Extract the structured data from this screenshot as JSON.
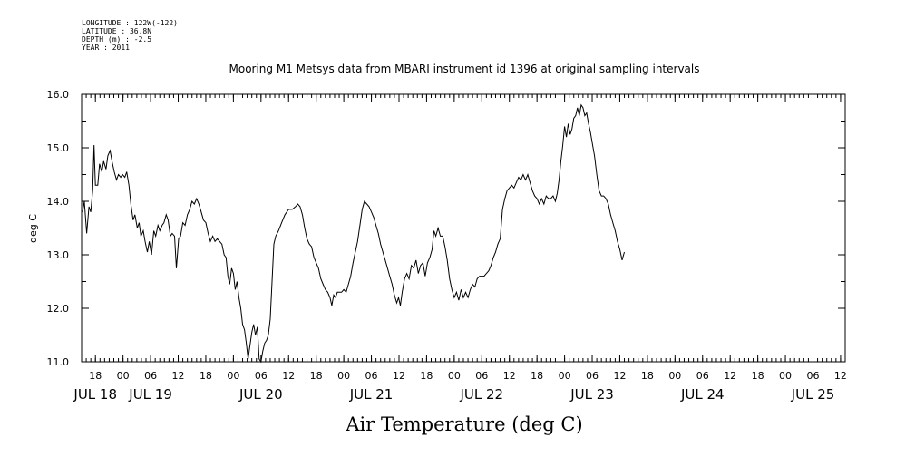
{
  "meta": {
    "longitude": "LONGITUDE : 122W(-122)",
    "latitude": "LATITUDE : 36.8N",
    "depth": "DEPTH (m) : -2.5",
    "year": "YEAR : 2011"
  },
  "chart_data": {
    "type": "line",
    "title": "Mooring M1 Metsys data from MBARI instrument id 1396 at original sampling intervals",
    "xlabel": "Air Temperature (deg C)",
    "ylabel": "deg C",
    "xlim": [
      15,
      181
    ],
    "ylim": [
      11.0,
      16.0
    ],
    "y_ticks": [
      "11.0",
      "12.0",
      "13.0",
      "14.0",
      "15.0",
      "16.0"
    ],
    "x_hour_ticks": [
      {
        "h": 18,
        "label": "18"
      },
      {
        "h": 24,
        "label": "00"
      },
      {
        "h": 30,
        "label": "06"
      },
      {
        "h": 36,
        "label": "12"
      },
      {
        "h": 42,
        "label": "18"
      },
      {
        "h": 48,
        "label": "00"
      },
      {
        "h": 54,
        "label": "06"
      },
      {
        "h": 60,
        "label": "12"
      },
      {
        "h": 66,
        "label": "18"
      },
      {
        "h": 72,
        "label": "00"
      },
      {
        "h": 78,
        "label": "06"
      },
      {
        "h": 84,
        "label": "12"
      },
      {
        "h": 90,
        "label": "18"
      },
      {
        "h": 96,
        "label": "00"
      },
      {
        "h": 102,
        "label": "06"
      },
      {
        "h": 108,
        "label": "12"
      },
      {
        "h": 114,
        "label": "18"
      },
      {
        "h": 120,
        "label": "00"
      },
      {
        "h": 126,
        "label": "06"
      },
      {
        "h": 132,
        "label": "12"
      },
      {
        "h": 138,
        "label": "18"
      },
      {
        "h": 144,
        "label": "00"
      },
      {
        "h": 150,
        "label": "06"
      },
      {
        "h": 156,
        "label": "12"
      },
      {
        "h": 162,
        "label": "18"
      },
      {
        "h": 168,
        "label": "00"
      },
      {
        "h": 174,
        "label": "06"
      },
      {
        "h": 180,
        "label": "12"
      }
    ],
    "x_day_labels": [
      {
        "h": 18,
        "label": "JUL 18"
      },
      {
        "h": 30,
        "label": "JUL 19"
      },
      {
        "h": 54,
        "label": "JUL 20"
      },
      {
        "h": 78,
        "label": "JUL 21"
      },
      {
        "h": 102,
        "label": "JUL 22"
      },
      {
        "h": 126,
        "label": "JUL 23"
      },
      {
        "h": 150,
        "label": "JUL 24"
      },
      {
        "h": 174,
        "label": "JUL 25"
      }
    ],
    "series": [
      {
        "color": "#000000",
        "points": [
          [
            15.2,
            13.8
          ],
          [
            15.6,
            14.0
          ],
          [
            16.1,
            13.4
          ],
          [
            16.6,
            13.9
          ],
          [
            17.0,
            13.8
          ],
          [
            17.4,
            14.2
          ],
          [
            17.7,
            15.05
          ],
          [
            18.0,
            14.3
          ],
          [
            18.5,
            14.3
          ],
          [
            18.9,
            14.7
          ],
          [
            19.4,
            14.55
          ],
          [
            19.8,
            14.75
          ],
          [
            20.3,
            14.6
          ],
          [
            20.7,
            14.85
          ],
          [
            21.2,
            14.95
          ],
          [
            21.6,
            14.75
          ],
          [
            22.1,
            14.55
          ],
          [
            22.6,
            14.4
          ],
          [
            23.0,
            14.5
          ],
          [
            23.5,
            14.45
          ],
          [
            23.9,
            14.5
          ],
          [
            24.4,
            14.45
          ],
          [
            24.8,
            14.55
          ],
          [
            25.3,
            14.3
          ],
          [
            25.7,
            13.95
          ],
          [
            26.2,
            13.65
          ],
          [
            26.6,
            13.75
          ],
          [
            27.1,
            13.5
          ],
          [
            27.5,
            13.6
          ],
          [
            27.9,
            13.35
          ],
          [
            28.4,
            13.45
          ],
          [
            28.8,
            13.25
          ],
          [
            29.3,
            13.05
          ],
          [
            29.7,
            13.25
          ],
          [
            30.2,
            13.0
          ],
          [
            30.7,
            13.45
          ],
          [
            31.1,
            13.35
          ],
          [
            31.6,
            13.55
          ],
          [
            32.0,
            13.45
          ],
          [
            32.5,
            13.55
          ],
          [
            32.9,
            13.6
          ],
          [
            33.4,
            13.75
          ],
          [
            33.8,
            13.65
          ],
          [
            34.3,
            13.35
          ],
          [
            34.7,
            13.4
          ],
          [
            35.2,
            13.35
          ],
          [
            35.6,
            12.75
          ],
          [
            36.1,
            13.3
          ],
          [
            36.5,
            13.35
          ],
          [
            37.0,
            13.6
          ],
          [
            37.5,
            13.55
          ],
          [
            38.0,
            13.75
          ],
          [
            38.5,
            13.85
          ],
          [
            39.0,
            14.0
          ],
          [
            39.5,
            13.95
          ],
          [
            40.0,
            14.05
          ],
          [
            40.5,
            13.95
          ],
          [
            41.0,
            13.8
          ],
          [
            41.5,
            13.65
          ],
          [
            42.0,
            13.6
          ],
          [
            42.5,
            13.4
          ],
          [
            43.0,
            13.25
          ],
          [
            43.5,
            13.35
          ],
          [
            44.0,
            13.25
          ],
          [
            44.5,
            13.3
          ],
          [
            45.0,
            13.25
          ],
          [
            45.5,
            13.2
          ],
          [
            46.0,
            13.0
          ],
          [
            46.4,
            12.95
          ],
          [
            46.8,
            12.6
          ],
          [
            47.2,
            12.45
          ],
          [
            47.6,
            12.75
          ],
          [
            48.0,
            12.65
          ],
          [
            48.4,
            12.35
          ],
          [
            48.8,
            12.5
          ],
          [
            49.2,
            12.2
          ],
          [
            49.6,
            12.0
          ],
          [
            50.0,
            11.7
          ],
          [
            50.4,
            11.6
          ],
          [
            50.8,
            11.35
          ],
          [
            51.2,
            11.05
          ],
          [
            51.6,
            11.3
          ],
          [
            52.0,
            11.55
          ],
          [
            52.4,
            11.7
          ],
          [
            52.8,
            11.5
          ],
          [
            53.2,
            11.65
          ],
          [
            53.6,
            11.05
          ],
          [
            54.0,
            11.0
          ],
          [
            54.4,
            11.2
          ],
          [
            54.8,
            11.35
          ],
          [
            55.2,
            11.4
          ],
          [
            55.6,
            11.5
          ],
          [
            56.0,
            11.8
          ],
          [
            56.4,
            12.5
          ],
          [
            56.8,
            13.2
          ],
          [
            57.2,
            13.35
          ],
          [
            57.8,
            13.45
          ],
          [
            58.5,
            13.6
          ],
          [
            59.2,
            13.75
          ],
          [
            60.0,
            13.85
          ],
          [
            60.8,
            13.85
          ],
          [
            61.5,
            13.9
          ],
          [
            62.0,
            13.95
          ],
          [
            62.5,
            13.9
          ],
          [
            63.0,
            13.75
          ],
          [
            63.5,
            13.5
          ],
          [
            64.0,
            13.3
          ],
          [
            64.5,
            13.2
          ],
          [
            65.0,
            13.15
          ],
          [
            65.5,
            12.95
          ],
          [
            66.0,
            12.85
          ],
          [
            66.5,
            12.75
          ],
          [
            67.0,
            12.55
          ],
          [
            67.5,
            12.45
          ],
          [
            68.0,
            12.35
          ],
          [
            68.5,
            12.3
          ],
          [
            69.0,
            12.2
          ],
          [
            69.4,
            12.05
          ],
          [
            69.8,
            12.25
          ],
          [
            70.2,
            12.2
          ],
          [
            70.6,
            12.3
          ],
          [
            71.0,
            12.3
          ],
          [
            71.5,
            12.3
          ],
          [
            72.0,
            12.35
          ],
          [
            72.5,
            12.3
          ],
          [
            73.0,
            12.45
          ],
          [
            73.5,
            12.6
          ],
          [
            74.0,
            12.85
          ],
          [
            74.5,
            13.05
          ],
          [
            75.0,
            13.25
          ],
          [
            75.5,
            13.55
          ],
          [
            76.0,
            13.85
          ],
          [
            76.5,
            14.0
          ],
          [
            77.0,
            13.95
          ],
          [
            77.5,
            13.9
          ],
          [
            78.0,
            13.8
          ],
          [
            78.5,
            13.7
          ],
          [
            79.0,
            13.55
          ],
          [
            79.5,
            13.4
          ],
          [
            80.0,
            13.2
          ],
          [
            80.5,
            13.05
          ],
          [
            81.0,
            12.9
          ],
          [
            81.5,
            12.75
          ],
          [
            82.0,
            12.6
          ],
          [
            82.5,
            12.45
          ],
          [
            83.0,
            12.25
          ],
          [
            83.5,
            12.1
          ],
          [
            83.9,
            12.2
          ],
          [
            84.3,
            12.05
          ],
          [
            84.7,
            12.3
          ],
          [
            85.2,
            12.55
          ],
          [
            85.7,
            12.65
          ],
          [
            86.2,
            12.55
          ],
          [
            86.7,
            12.8
          ],
          [
            87.2,
            12.75
          ],
          [
            87.7,
            12.9
          ],
          [
            88.2,
            12.65
          ],
          [
            88.7,
            12.8
          ],
          [
            89.2,
            12.85
          ],
          [
            89.7,
            12.6
          ],
          [
            90.2,
            12.85
          ],
          [
            90.7,
            12.95
          ],
          [
            91.2,
            13.1
          ],
          [
            91.6,
            13.45
          ],
          [
            92.0,
            13.35
          ],
          [
            92.5,
            13.5
          ],
          [
            93.0,
            13.35
          ],
          [
            93.5,
            13.35
          ],
          [
            94.0,
            13.15
          ],
          [
            94.5,
            12.9
          ],
          [
            95.0,
            12.55
          ],
          [
            95.5,
            12.35
          ],
          [
            96.0,
            12.2
          ],
          [
            96.5,
            12.3
          ],
          [
            97.0,
            12.15
          ],
          [
            97.5,
            12.35
          ],
          [
            98.0,
            12.2
          ],
          [
            98.5,
            12.3
          ],
          [
            99.0,
            12.2
          ],
          [
            99.5,
            12.35
          ],
          [
            100.0,
            12.45
          ],
          [
            100.5,
            12.4
          ],
          [
            101.0,
            12.55
          ],
          [
            101.5,
            12.6
          ],
          [
            102.0,
            12.6
          ],
          [
            102.5,
            12.6
          ],
          [
            103.0,
            12.65
          ],
          [
            103.5,
            12.7
          ],
          [
            104.0,
            12.8
          ],
          [
            104.5,
            12.95
          ],
          [
            105.0,
            13.05
          ],
          [
            105.5,
            13.2
          ],
          [
            106.0,
            13.3
          ],
          [
            106.5,
            13.85
          ],
          [
            107.0,
            14.05
          ],
          [
            107.5,
            14.2
          ],
          [
            108.0,
            14.25
          ],
          [
            108.5,
            14.3
          ],
          [
            109.0,
            14.25
          ],
          [
            109.5,
            14.35
          ],
          [
            110.0,
            14.45
          ],
          [
            110.5,
            14.4
          ],
          [
            111.0,
            14.5
          ],
          [
            111.5,
            14.4
          ],
          [
            112.0,
            14.5
          ],
          [
            112.5,
            14.35
          ],
          [
            113.0,
            14.2
          ],
          [
            113.5,
            14.1
          ],
          [
            114.0,
            14.05
          ],
          [
            114.5,
            13.95
          ],
          [
            115.0,
            14.05
          ],
          [
            115.5,
            13.95
          ],
          [
            116.0,
            14.1
          ],
          [
            116.5,
            14.05
          ],
          [
            117.0,
            14.05
          ],
          [
            117.5,
            14.1
          ],
          [
            118.0,
            14.0
          ],
          [
            118.4,
            14.15
          ],
          [
            118.8,
            14.4
          ],
          [
            119.2,
            14.75
          ],
          [
            119.6,
            15.05
          ],
          [
            120.0,
            15.4
          ],
          [
            120.4,
            15.2
          ],
          [
            120.8,
            15.45
          ],
          [
            121.2,
            15.25
          ],
          [
            121.6,
            15.35
          ],
          [
            122.0,
            15.55
          ],
          [
            122.4,
            15.6
          ],
          [
            122.8,
            15.75
          ],
          [
            123.2,
            15.6
          ],
          [
            123.6,
            15.8
          ],
          [
            124.0,
            15.75
          ],
          [
            124.4,
            15.6
          ],
          [
            124.8,
            15.65
          ],
          [
            125.2,
            15.45
          ],
          [
            125.6,
            15.3
          ],
          [
            126.0,
            15.1
          ],
          [
            126.5,
            14.85
          ],
          [
            127.0,
            14.5
          ],
          [
            127.5,
            14.2
          ],
          [
            128.0,
            14.1
          ],
          [
            128.5,
            14.1
          ],
          [
            129.0,
            14.05
          ],
          [
            129.5,
            13.95
          ],
          [
            130.0,
            13.75
          ],
          [
            130.5,
            13.6
          ],
          [
            131.0,
            13.45
          ],
          [
            131.5,
            13.25
          ],
          [
            132.0,
            13.1
          ],
          [
            132.5,
            12.9
          ],
          [
            133.0,
            13.05
          ]
        ]
      }
    ]
  }
}
